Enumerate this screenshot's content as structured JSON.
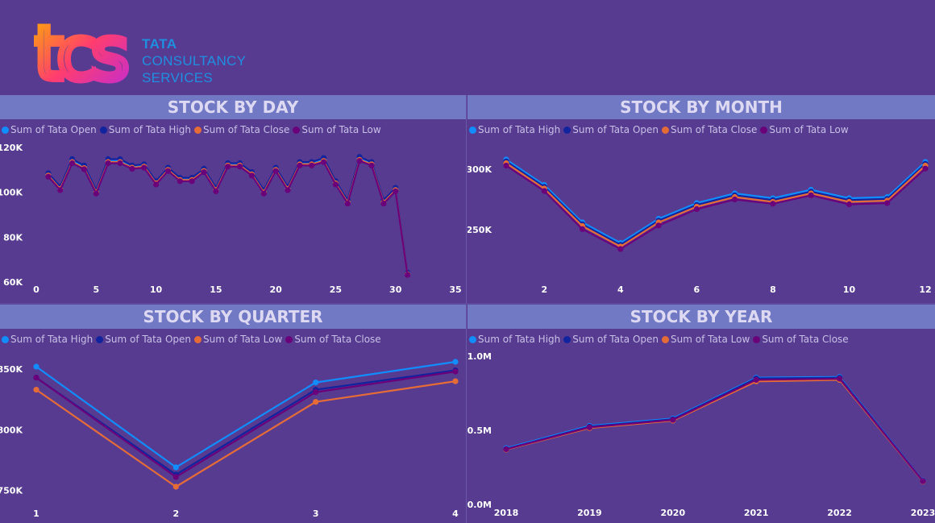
{
  "brand": {
    "logo_letters": "tcs",
    "line1": "TATA",
    "line2": "CONSULTANCY",
    "line3": "SERVICES"
  },
  "colors": {
    "background": "#573b91",
    "title_bar": "#7178c4",
    "series_light_blue": "#118dff",
    "series_dark_blue": "#12239e",
    "series_orange": "#e66c37",
    "series_purple": "#6b007b"
  },
  "panels": {
    "day": {
      "title": "STOCK BY DAY",
      "legend": [
        {
          "label": "Sum of Tata Open",
          "color": "#118dff"
        },
        {
          "label": "Sum of Tata High",
          "color": "#12239e"
        },
        {
          "label": "Sum of Tata Close",
          "color": "#e66c37"
        },
        {
          "label": "Sum of Tata Low",
          "color": "#6b007b"
        }
      ]
    },
    "month": {
      "title": "STOCK BY MONTH",
      "legend": [
        {
          "label": "Sum of Tata High",
          "color": "#118dff"
        },
        {
          "label": "Sum of Tata Open",
          "color": "#12239e"
        },
        {
          "label": "Sum of Tata Close",
          "color": "#e66c37"
        },
        {
          "label": "Sum of Tata Low",
          "color": "#6b007b"
        }
      ]
    },
    "quarter": {
      "title": "STOCK BY QUARTER",
      "legend": [
        {
          "label": "Sum of Tata High",
          "color": "#118dff"
        },
        {
          "label": "Sum of Tata Open",
          "color": "#12239e"
        },
        {
          "label": "Sum of Tata Low",
          "color": "#e66c37"
        },
        {
          "label": "Sum of Tata Close",
          "color": "#6b007b"
        }
      ]
    },
    "year": {
      "title": "STOCK BY YEAR",
      "legend": [
        {
          "label": "Sum of Tata High",
          "color": "#118dff"
        },
        {
          "label": "Sum of Tata Open",
          "color": "#12239e"
        },
        {
          "label": "Sum of Tata Low",
          "color": "#e66c37"
        },
        {
          "label": "Sum of Tata Close",
          "color": "#6b007b"
        }
      ]
    }
  },
  "chart_data": [
    {
      "id": "day",
      "type": "line",
      "title": "STOCK BY DAY",
      "x": [
        1,
        2,
        3,
        4,
        5,
        6,
        7,
        8,
        9,
        10,
        11,
        12,
        13,
        14,
        15,
        16,
        17,
        18,
        19,
        20,
        21,
        22,
        23,
        24,
        25,
        26,
        27,
        28,
        29,
        30,
        31
      ],
      "xlim": [
        0,
        35
      ],
      "xticks": [
        0,
        5,
        10,
        15,
        20,
        25,
        30,
        35
      ],
      "xtick_labels": [
        "0",
        "5",
        "10",
        "15",
        "20",
        "25",
        "30",
        "35"
      ],
      "ylim": [
        60000,
        120000
      ],
      "yticks": [
        60000,
        80000,
        100000,
        120000
      ],
      "ytick_labels": [
        "60K",
        "80K",
        "100K",
        "120K"
      ],
      "series": [
        {
          "name": "Sum of Tata Open",
          "color": "#118dff",
          "values": [
            108000,
            102000,
            114000,
            111500,
            100500,
            114000,
            114000,
            111500,
            112000,
            104500,
            110500,
            106000,
            106000,
            110000,
            101500,
            112500,
            112500,
            108500,
            100500,
            110500,
            102000,
            113000,
            113000,
            114500,
            104500,
            96000,
            115000,
            113000,
            96000,
            101500,
            64000
          ]
        },
        {
          "name": "Sum of Tata High",
          "color": "#12239e",
          "values": [
            108500,
            102500,
            114800,
            112000,
            101000,
            114800,
            114800,
            112000,
            112500,
            105000,
            111000,
            106500,
            106500,
            110500,
            102000,
            113000,
            113000,
            109000,
            101000,
            111000,
            102500,
            113500,
            113500,
            115300,
            105000,
            96500,
            115800,
            113500,
            96500,
            102000,
            64200
          ]
        },
        {
          "name": "Sum of Tata Close",
          "color": "#e66c37",
          "values": [
            107500,
            101500,
            113500,
            110800,
            100000,
            113500,
            113500,
            111000,
            111500,
            104000,
            110000,
            105500,
            105500,
            109500,
            101000,
            112000,
            112000,
            108000,
            100000,
            110000,
            101500,
            112500,
            112500,
            114000,
            104000,
            95500,
            114500,
            112500,
            95500,
            101000,
            63500
          ]
        },
        {
          "name": "Sum of Tata Low",
          "color": "#6b007b",
          "values": [
            107000,
            101000,
            113000,
            110300,
            99500,
            113000,
            113000,
            110500,
            111000,
            103500,
            109500,
            105000,
            105000,
            109000,
            100500,
            111500,
            111500,
            107500,
            99500,
            109500,
            101000,
            112000,
            112000,
            113500,
            103500,
            95000,
            114000,
            112000,
            95000,
            100500,
            63200
          ]
        }
      ]
    },
    {
      "id": "month",
      "type": "line",
      "title": "STOCK BY MONTH",
      "x": [
        1,
        2,
        3,
        4,
        5,
        6,
        7,
        8,
        9,
        10,
        11,
        12
      ],
      "xlim": [
        1,
        12
      ],
      "xticks": [
        2,
        4,
        6,
        8,
        10,
        12
      ],
      "xtick_labels": [
        "2",
        "4",
        "6",
        "8",
        "10",
        "12"
      ],
      "ylim": [
        220000,
        320000
      ],
      "yticks": [
        250000,
        300000
      ],
      "ytick_labels": [
        "250K",
        "300K"
      ],
      "series": [
        {
          "name": "Sum of Tata High",
          "color": "#118dff",
          "values": [
            308000,
            287000,
            256000,
            239000,
            259000,
            272000,
            280000,
            276000,
            283000,
            276000,
            277000,
            306000
          ]
        },
        {
          "name": "Sum of Tata Open",
          "color": "#12239e",
          "values": [
            306500,
            285500,
            254500,
            237500,
            257500,
            270500,
            278500,
            274500,
            281500,
            274500,
            275500,
            304500
          ]
        },
        {
          "name": "Sum of Tata Close",
          "color": "#e66c37",
          "values": [
            305000,
            284000,
            253000,
            236000,
            256000,
            269000,
            277000,
            273000,
            280000,
            273000,
            274000,
            303000
          ]
        },
        {
          "name": "Sum of Tata Low",
          "color": "#6b007b",
          "values": [
            303000,
            282000,
            250500,
            234000,
            253500,
            267000,
            275000,
            271500,
            278500,
            271000,
            272000,
            300500
          ]
        }
      ]
    },
    {
      "id": "quarter",
      "type": "line",
      "title": "STOCK BY QUARTER",
      "x": [
        1,
        2,
        3,
        4
      ],
      "xlim": [
        1,
        4
      ],
      "xticks": [
        1,
        2,
        3,
        4
      ],
      "xtick_labels": [
        "1",
        "2",
        "3",
        "4"
      ],
      "ylim": [
        745000,
        860000
      ],
      "yticks": [
        750000,
        800000,
        850000
      ],
      "ytick_labels": [
        "750K",
        "800K",
        "850K"
      ],
      "series": [
        {
          "name": "Sum of Tata High",
          "color": "#118dff",
          "values": [
            852000,
            769000,
            839000,
            856000
          ]
        },
        {
          "name": "Sum of Tata Open",
          "color": "#12239e",
          "values": [
            843000,
            763000,
            833000,
            849000
          ]
        },
        {
          "name": "Sum of Tata Low",
          "color": "#e66c37",
          "values": [
            833000,
            753000,
            823000,
            840000
          ]
        },
        {
          "name": "Sum of Tata Close",
          "color": "#6b007b",
          "values": [
            843000,
            761000,
            831000,
            848000
          ]
        }
      ]
    },
    {
      "id": "year",
      "type": "line",
      "title": "STOCK BY YEAR",
      "x": [
        "2018",
        "2019",
        "2020",
        "2021",
        "2022",
        "2023"
      ],
      "xlim": [
        0,
        5
      ],
      "xticks": [
        0,
        1,
        2,
        3,
        4,
        5
      ],
      "xtick_labels": [
        "2018",
        "2019",
        "2020",
        "2021",
        "2022",
        "2023"
      ],
      "ylim": [
        0,
        1000000
      ],
      "yticks": [
        0,
        500000,
        1000000
      ],
      "ytick_labels": [
        "0.0M",
        "0.5M",
        "1.0M"
      ],
      "series": [
        {
          "name": "Sum of Tata High",
          "color": "#118dff",
          "values": [
            380000,
            530000,
            580000,
            855000,
            860000,
            160000
          ]
        },
        {
          "name": "Sum of Tata Open",
          "color": "#12239e",
          "values": [
            375000,
            525000,
            575000,
            850000,
            855000,
            158000
          ]
        },
        {
          "name": "Sum of Tata Low",
          "color": "#e66c37",
          "values": [
            370000,
            515000,
            565000,
            830000,
            840000,
            155000
          ]
        },
        {
          "name": "Sum of Tata Close",
          "color": "#6b007b",
          "values": [
            373000,
            520000,
            570000,
            840000,
            848000,
            157000
          ]
        }
      ]
    }
  ]
}
